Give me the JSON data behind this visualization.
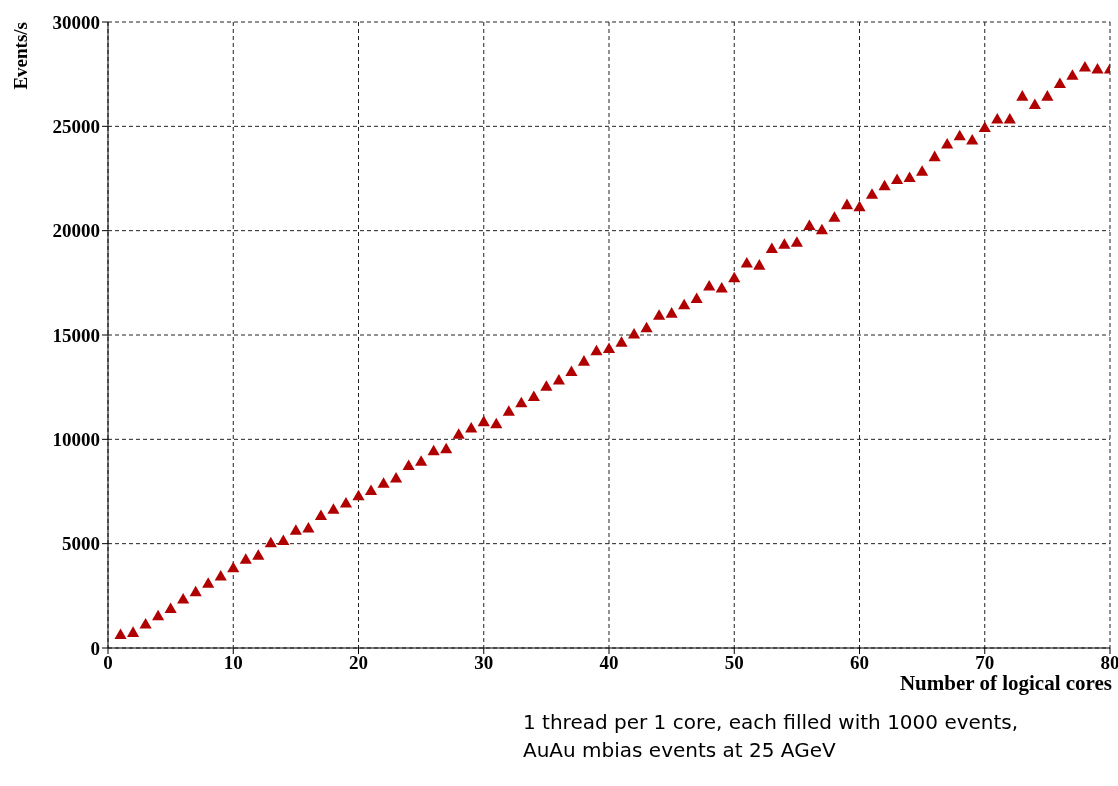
{
  "chart_data": {
    "type": "scatter",
    "xlabel": "Number of logical cores",
    "ylabel": "Events/s",
    "x": [
      1,
      2,
      3,
      4,
      5,
      6,
      7,
      8,
      9,
      10,
      11,
      12,
      13,
      14,
      15,
      16,
      17,
      18,
      19,
      20,
      21,
      22,
      23,
      24,
      25,
      26,
      27,
      28,
      29,
      30,
      31,
      32,
      33,
      34,
      35,
      36,
      37,
      38,
      39,
      40,
      41,
      42,
      43,
      44,
      45,
      46,
      47,
      48,
      49,
      50,
      51,
      52,
      53,
      54,
      55,
      56,
      57,
      58,
      59,
      60,
      61,
      62,
      63,
      64,
      65,
      66,
      67,
      68,
      69,
      70,
      71,
      72,
      73,
      74,
      75,
      76,
      77,
      78,
      79,
      80
    ],
    "series": [
      {
        "color": "#b00000",
        "values": [
          600,
          700,
          1100,
          1500,
          1850,
          2300,
          2650,
          3050,
          3400,
          3800,
          4200,
          4400,
          5000,
          5100,
          5600,
          5700,
          6300,
          6600,
          6900,
          7250,
          7500,
          7850,
          8100,
          8700,
          8900,
          9400,
          9500,
          10200,
          10500,
          10800,
          10700,
          11300,
          11700,
          12000,
          12500,
          12800,
          13200,
          13700,
          14200,
          14300,
          14600,
          15000,
          15300,
          15900,
          16000,
          16400,
          16700,
          17300,
          17200,
          17700,
          18400,
          18300,
          19100,
          19300,
          19400,
          20200,
          20000,
          20600,
          21200,
          21100,
          21700,
          22100,
          22400,
          22500,
          22800,
          23500,
          24100,
          24500,
          24300,
          24900,
          25300,
          25300,
          26400,
          26000,
          26400,
          27000,
          27400,
          27800,
          27700,
          27700
        ]
      }
    ],
    "xlim": [
      0,
      80
    ],
    "xticks": [
      0,
      10,
      20,
      30,
      40,
      50,
      60,
      70,
      80
    ],
    "ylim": [
      0,
      30000
    ],
    "yticks": [
      0,
      5000,
      10000,
      15000,
      20000,
      25000,
      30000
    ],
    "grid": true,
    "marker": "triangle",
    "annotations": [
      "1 thread per 1 core, each filled with 1000 events, AuAu mbias events at 25 AGeV"
    ]
  }
}
